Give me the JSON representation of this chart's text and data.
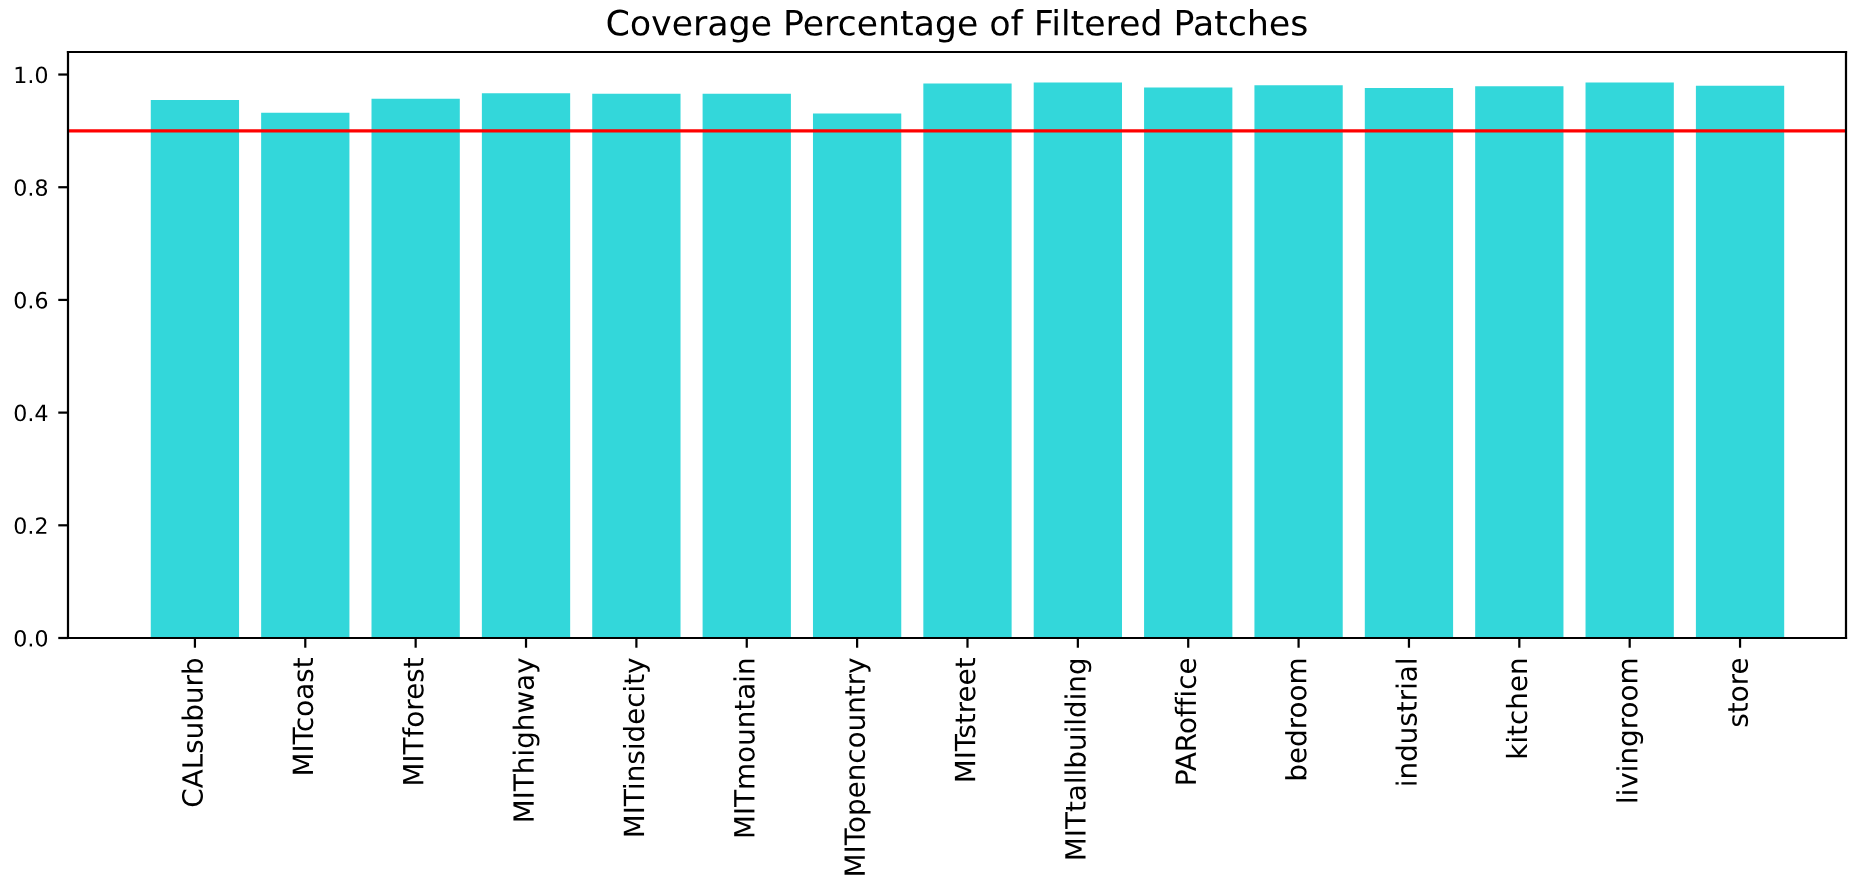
{
  "chart_data": {
    "type": "bar",
    "title": "Coverage Percentage of Filtered Patches",
    "categories": [
      "CALsuburb",
      "MITcoast",
      "MITforest",
      "MIThighway",
      "MITinsidecity",
      "MITmountain",
      "MITopencountry",
      "MITstreet",
      "MITtallbuilding",
      "PARoffice",
      "bedroom",
      "industrial",
      "kitchen",
      "livingroom",
      "store"
    ],
    "values": [
      0.955,
      0.932,
      0.957,
      0.967,
      0.966,
      0.966,
      0.931,
      0.984,
      0.986,
      0.977,
      0.981,
      0.976,
      0.979,
      0.986,
      0.98
    ],
    "color": "#33d7da",
    "ylim": [
      0,
      1.04
    ],
    "yticks": [
      {
        "value": 0,
        "label": "0.0"
      },
      0.2,
      0.4,
      0.6,
      0.8,
      {
        "value": 1,
        "label": "1.0"
      }
    ],
    "ref_lines": [
      {
        "axis": "y",
        "value": 0.9,
        "label": null,
        "color": "#ff0000"
      }
    ],
    "grid": false,
    "legend": false
  }
}
